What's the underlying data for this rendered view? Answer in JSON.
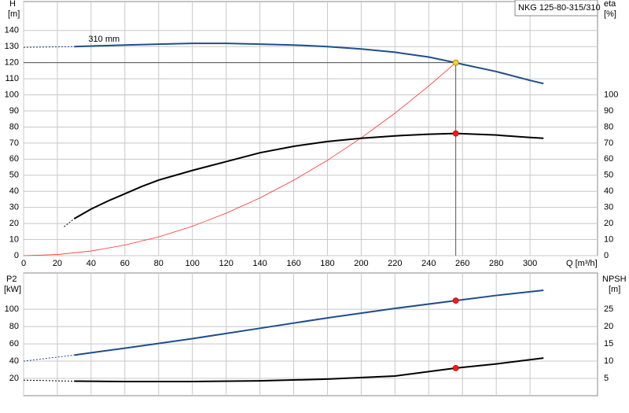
{
  "chart_data": [
    {
      "type": "line",
      "title": "NKG 125-80-315/310",
      "ylabel": "H",
      "yunit": "[m]",
      "y2label": "eta",
      "y2unit": "[%]",
      "xlabel": "Q [m³/h]",
      "xlim": [
        0,
        340
      ],
      "xticks": [
        0,
        20,
        40,
        60,
        80,
        100,
        120,
        140,
        160,
        180,
        200,
        220,
        240,
        260,
        280,
        300
      ],
      "ylim": [
        0,
        158
      ],
      "yticks": [
        0,
        10,
        20,
        30,
        40,
        50,
        60,
        70,
        80,
        90,
        100,
        110,
        120,
        130,
        140
      ],
      "y2lim": [
        0,
        158
      ],
      "y2ticks": [
        0,
        10,
        20,
        30,
        40,
        50,
        60,
        70,
        80,
        90,
        100
      ],
      "grid": true,
      "xtick_labels": true,
      "series": [
        {
          "style": "guide",
          "color": "#555555",
          "x": [
            0,
            256,
            256
          ],
          "values": [
            120,
            120,
            0
          ]
        },
        {
          "style": "dashed",
          "color": "#1f4e8c",
          "x": [
            0,
            30
          ],
          "values": [
            129.5,
            130
          ]
        },
        {
          "name": "310 mm",
          "style": "line",
          "color": "#1f4e8c",
          "x": [
            30,
            60,
            80,
            100,
            120,
            140,
            160,
            180,
            200,
            220,
            240,
            256,
            260,
            280,
            300,
            308
          ],
          "values": [
            130,
            131,
            131.5,
            132,
            132,
            131.5,
            131,
            130,
            128.5,
            126.5,
            123.5,
            120,
            119,
            114.5,
            109,
            107
          ]
        },
        {
          "style": "thin",
          "color": "#ff3030",
          "x": [
            0,
            20,
            40,
            60,
            80,
            100,
            120,
            140,
            160,
            180,
            200,
            220,
            240,
            256
          ],
          "values": [
            0,
            0.7,
            2.9,
            6.6,
            11.7,
            18.3,
            26.4,
            35.9,
            46.9,
            59.3,
            73.2,
            88.6,
            105.5,
            120
          ]
        },
        {
          "style": "dashed",
          "color": "#000000",
          "axis": "y2",
          "x": [
            24,
            30
          ],
          "values": [
            18,
            23
          ]
        },
        {
          "style": "line",
          "color": "#000000",
          "axis": "y2",
          "x": [
            30,
            40,
            50,
            60,
            70,
            80,
            100,
            120,
            140,
            160,
            180,
            200,
            220,
            240,
            256,
            280,
            300,
            308
          ],
          "values": [
            23,
            29,
            34,
            38.5,
            43,
            47,
            53,
            58.5,
            64,
            68,
            71,
            73,
            74.5,
            75.5,
            76,
            75,
            73.5,
            73
          ]
        },
        {
          "style": "marker",
          "color": "#ffd21f",
          "x": [
            256
          ],
          "values": [
            120
          ]
        },
        {
          "style": "marker",
          "color": "#ff1a1a",
          "axis": "y2",
          "x": [
            256
          ],
          "values": [
            76
          ]
        }
      ]
    },
    {
      "type": "line",
      "ylabel": "P2",
      "yunit": "[kW]",
      "y2label": "NPSH",
      "y2unit": "[m]",
      "xlim": [
        0,
        340
      ],
      "xticks": [
        0,
        20,
        40,
        60,
        80,
        100,
        120,
        140,
        160,
        180,
        200,
        220,
        240,
        260,
        280,
        300
      ],
      "ylim": [
        0,
        142
      ],
      "yticks": [
        20,
        40,
        60,
        80,
        100
      ],
      "y2lim": [
        0,
        35.5
      ],
      "y2ticks": [
        5,
        10,
        15,
        20,
        25
      ],
      "grid": true,
      "xtick_labels": false,
      "series": [
        {
          "style": "dashed",
          "color": "#1f4e8c",
          "x": [
            0,
            30
          ],
          "values": [
            40,
            47
          ]
        },
        {
          "style": "line",
          "color": "#1f4e8c",
          "x": [
            30,
            60,
            100,
            140,
            180,
            220,
            256,
            280,
            308
          ],
          "values": [
            47,
            55,
            66,
            78,
            90,
            101,
            110,
            116,
            122
          ]
        },
        {
          "style": "dashed",
          "color": "#000000",
          "axis": "y2",
          "x": [
            0,
            30
          ],
          "values": [
            4.5,
            4.2
          ]
        },
        {
          "style": "line",
          "color": "#000000",
          "axis": "y2",
          "x": [
            30,
            60,
            100,
            140,
            180,
            220,
            256,
            280,
            308
          ],
          "values": [
            4.2,
            4.1,
            4.1,
            4.3,
            4.8,
            5.7,
            8,
            9.2,
            10.9
          ]
        },
        {
          "style": "marker",
          "color": "#ff1a1a",
          "x": [
            256
          ],
          "values": [
            110
          ]
        },
        {
          "style": "marker",
          "color": "#ff1a1a",
          "axis": "y2",
          "x": [
            256
          ],
          "values": [
            8
          ]
        }
      ]
    }
  ]
}
